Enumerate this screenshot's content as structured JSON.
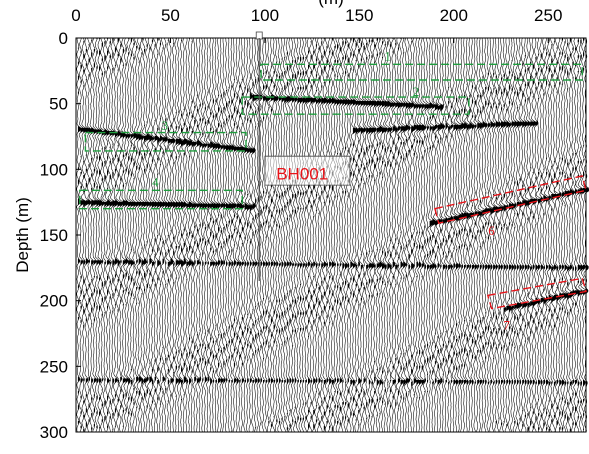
{
  "chart_data": {
    "type": "seismic-section",
    "title": "",
    "xlabel": "(m)",
    "ylabel": "Depth (m)",
    "xlim": [
      0,
      270
    ],
    "ylim": [
      0,
      300
    ],
    "y_reversed": true,
    "x_axis_position": "top",
    "xticks": [
      0,
      50,
      100,
      150,
      200,
      250
    ],
    "yticks": [
      0,
      50,
      100,
      150,
      200,
      250,
      300
    ],
    "grid": false,
    "trace_spacing_m": 1.4,
    "reflectors": [
      {
        "x0": 5,
        "y0": 70,
        "x1": 90,
        "y1": 85,
        "strength": 1.0
      },
      {
        "x0": 95,
        "y0": 45,
        "x1": 190,
        "y1": 52,
        "strength": 1.0
      },
      {
        "x0": 150,
        "y0": 70,
        "x1": 240,
        "y1": 65,
        "strength": 0.9
      },
      {
        "x0": 0,
        "y0": 125,
        "x1": 90,
        "y1": 128,
        "strength": 1.0
      },
      {
        "x0": 190,
        "y0": 140,
        "x1": 270,
        "y1": 115,
        "strength": 1.0
      },
      {
        "x0": 230,
        "y0": 205,
        "x1": 270,
        "y1": 192,
        "strength": 1.0
      },
      {
        "x0": 0,
        "y0": 170,
        "x1": 270,
        "y1": 175,
        "strength": 0.6
      },
      {
        "x0": 0,
        "y0": 260,
        "x1": 270,
        "y1": 262,
        "strength": 0.5
      }
    ],
    "annotations": [
      {
        "label": "1",
        "color": "#1e9e3e",
        "dashed": true,
        "corners": [
          [
            98,
            20
          ],
          [
            268,
            20
          ],
          [
            268,
            32
          ],
          [
            98,
            32
          ]
        ],
        "label_at": [
          165,
          17
        ]
      },
      {
        "label": "2",
        "color": "#1e9e3e",
        "dashed": true,
        "corners": [
          [
            88,
            45
          ],
          [
            208,
            45
          ],
          [
            208,
            58
          ],
          [
            88,
            58
          ]
        ],
        "label_at": [
          180,
          44
        ]
      },
      {
        "label": "3",
        "color": "#1e9e3e",
        "dashed": true,
        "corners": [
          [
            5,
            72
          ],
          [
            90,
            72
          ],
          [
            90,
            86
          ],
          [
            5,
            86
          ]
        ],
        "label_at": [
          47,
          70
        ]
      },
      {
        "label": "4",
        "color": "#1e9e3e",
        "dashed": true,
        "corners": [
          [
            2,
            116
          ],
          [
            88,
            116
          ],
          [
            88,
            130
          ],
          [
            2,
            130
          ]
        ],
        "label_at": [
          42,
          113
        ]
      },
      {
        "label": "6",
        "color": "#e8141a",
        "dashed": true,
        "corners": [
          [
            190,
            130
          ],
          [
            268,
            105
          ],
          [
            270,
            116
          ],
          [
            192,
            141
          ]
        ],
        "label_at": [
          220,
          150
        ]
      },
      {
        "label": "7",
        "color": "#e8141a",
        "dashed": true,
        "corners": [
          [
            218,
            196
          ],
          [
            268,
            183
          ],
          [
            270,
            193
          ],
          [
            220,
            206
          ]
        ],
        "label_at": [
          228,
          222
        ]
      }
    ],
    "borehole": {
      "label": "BH001",
      "x": 97,
      "y_top": 0,
      "y_bottom": 185,
      "label_at": [
        106,
        103
      ],
      "box": [
        [
          100,
          90
        ],
        [
          145,
          90
        ],
        [
          145,
          112
        ],
        [
          100,
          112
        ]
      ]
    }
  }
}
